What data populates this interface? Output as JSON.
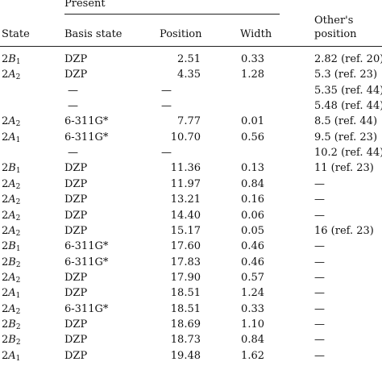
{
  "header": {
    "present": "Present",
    "state": "State",
    "basis": "Basis state",
    "position": "Position",
    "width": "Width",
    "others_line1": "Other's",
    "others_line2": "position"
  },
  "rows": [
    {
      "state_num": "2",
      "state_sym": "B",
      "state_sub": "1",
      "basis": "DZP",
      "position": "2.51",
      "width": "0.33",
      "other": "2.82 (ref. 20)"
    },
    {
      "state_num": "2",
      "state_sym": "A",
      "state_sub": "2",
      "basis": "DZP",
      "position": "4.35",
      "width": "1.28",
      "other": "5.3 (ref. 23)"
    },
    {
      "state_num": "",
      "state_sym": "",
      "state_sub": "",
      "basis": "—",
      "position": "—",
      "width": "",
      "other": "5.35 (ref. 44)"
    },
    {
      "state_num": "",
      "state_sym": "",
      "state_sub": "",
      "basis": "—",
      "position": "—",
      "width": "",
      "other": "5.48 (ref. 44)"
    },
    {
      "state_num": "2",
      "state_sym": "A",
      "state_sub": "2",
      "basis": "6-311G*",
      "position": "7.77",
      "width": "0.01",
      "other": "8.5 (ref. 44)"
    },
    {
      "state_num": "2",
      "state_sym": "A",
      "state_sub": "1",
      "basis": "6-311G*",
      "position": "10.70",
      "width": "0.56",
      "other": "9.5 (ref. 23)"
    },
    {
      "state_num": "",
      "state_sym": "",
      "state_sub": "",
      "basis": "—",
      "position": "—",
      "width": "",
      "other": "10.2 (ref. 44)"
    },
    {
      "state_num": "2",
      "state_sym": "B",
      "state_sub": "1",
      "basis": "DZP",
      "position": "11.36",
      "width": "0.13",
      "other": "11 (ref. 23)"
    },
    {
      "state_num": "2",
      "state_sym": "A",
      "state_sub": "2",
      "basis": "DZP",
      "position": "11.97",
      "width": "0.84",
      "other": "—"
    },
    {
      "state_num": "2",
      "state_sym": "A",
      "state_sub": "2",
      "basis": "DZP",
      "position": "13.21",
      "width": "0.16",
      "other": "—"
    },
    {
      "state_num": "2",
      "state_sym": "A",
      "state_sub": "2",
      "basis": "DZP",
      "position": "14.40",
      "width": "0.06",
      "other": "—"
    },
    {
      "state_num": "2",
      "state_sym": "A",
      "state_sub": "2",
      "basis": "DZP",
      "position": "15.17",
      "width": "0.05",
      "other": "16 (ref. 23)"
    },
    {
      "state_num": "2",
      "state_sym": "B",
      "state_sub": "1",
      "basis": "6-311G*",
      "position": "17.60",
      "width": "0.46",
      "other": "—"
    },
    {
      "state_num": "2",
      "state_sym": "B",
      "state_sub": "2",
      "basis": "6-311G*",
      "position": "17.83",
      "width": "0.46",
      "other": "—"
    },
    {
      "state_num": "2",
      "state_sym": "A",
      "state_sub": "2",
      "basis": "DZP",
      "position": "17.90",
      "width": "0.57",
      "other": "—"
    },
    {
      "state_num": "2",
      "state_sym": "A",
      "state_sub": "1",
      "basis": "DZP",
      "position": "18.51",
      "width": "1.24",
      "other": "—"
    },
    {
      "state_num": "2",
      "state_sym": "A",
      "state_sub": "2",
      "basis": "6-311G*",
      "position": "18.51",
      "width": "0.33",
      "other": "—"
    },
    {
      "state_num": "2",
      "state_sym": "B",
      "state_sub": "2",
      "basis": "DZP",
      "position": "18.69",
      "width": "1.10",
      "other": "—"
    },
    {
      "state_num": "2",
      "state_sym": "B",
      "state_sub": "2",
      "basis": "DZP",
      "position": "18.73",
      "width": "0.84",
      "other": "—"
    },
    {
      "state_num": "2",
      "state_sym": "A",
      "state_sub": "1",
      "basis": "DZP",
      "position": "19.48",
      "width": "1.62",
      "other": "—"
    }
  ]
}
